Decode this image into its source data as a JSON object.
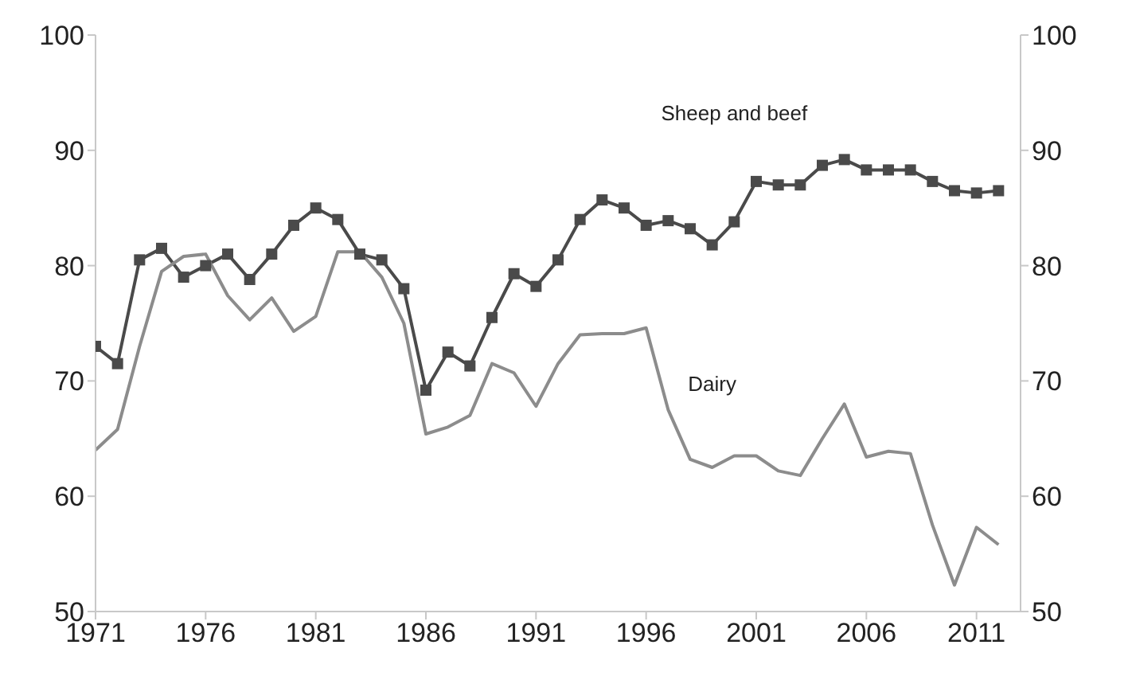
{
  "chart_data": {
    "type": "line",
    "x": [
      1971,
      1972,
      1973,
      1974,
      1975,
      1976,
      1977,
      1978,
      1979,
      1980,
      1981,
      1982,
      1983,
      1984,
      1985,
      1986,
      1987,
      1988,
      1989,
      1990,
      1991,
      1992,
      1993,
      1994,
      1995,
      1996,
      1997,
      1998,
      1999,
      2000,
      2001,
      2002,
      2003,
      2004,
      2005,
      2006,
      2007,
      2008,
      2009,
      2010,
      2011,
      2012
    ],
    "series": [
      {
        "name": "Sheep and beef",
        "color": "#4a4a4a",
        "marker": "square",
        "values": [
          73,
          71.5,
          80.5,
          81.5,
          79,
          80,
          81,
          78.8,
          81,
          83.5,
          85,
          84,
          81,
          80.5,
          78,
          69.2,
          72.5,
          71.3,
          75.5,
          79.3,
          78.2,
          80.5,
          84,
          85.7,
          85,
          83.5,
          83.9,
          83.2,
          81.8,
          83.8,
          87.3,
          87,
          87,
          88.7,
          89.2,
          88.3,
          88.3,
          88.3,
          87.3,
          86.5,
          86.3,
          86.5
        ]
      },
      {
        "name": "Dairy",
        "color": "#8c8c8c",
        "marker": "none",
        "values": [
          64,
          65.8,
          73,
          79.5,
          80.8,
          81,
          77.4,
          75.3,
          77.2,
          74.3,
          75.6,
          81.2,
          81.2,
          79,
          75,
          65.4,
          66,
          67,
          71.5,
          70.7,
          67.8,
          71.5,
          74,
          74.1,
          74.1,
          74.6,
          67.5,
          63.2,
          62.5,
          63.5,
          63.5,
          62.2,
          61.8,
          65,
          68,
          63.4,
          63.9,
          63.7,
          57.5,
          52.3,
          57.3,
          55.8
        ]
      }
    ],
    "xlim": [
      1971,
      2013
    ],
    "xticks": [
      1971,
      1976,
      1981,
      1986,
      1991,
      1996,
      2001,
      2006,
      2011
    ],
    "ylim": [
      50,
      100
    ],
    "yticks": [
      50,
      60,
      70,
      80,
      90,
      100
    ],
    "y2lim": [
      50,
      100
    ],
    "y2ticks": [
      50,
      60,
      70,
      80,
      90,
      100
    ],
    "grid": false,
    "legend": false,
    "line_style": "solid"
  }
}
